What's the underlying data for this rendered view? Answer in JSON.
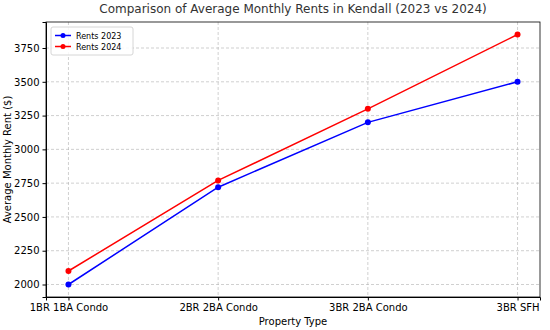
{
  "chart_data": {
    "type": "line",
    "title": "Comparison of Average Monthly Rents in Kendall (2023 vs 2024)",
    "x_label": "Property Type",
    "y_label": "Average Monthly Rent ($)",
    "categories": [
      "1BR 1BA Condo",
      "2BR 2BA Condo",
      "3BR 2BA Condo",
      "3BR SFH"
    ],
    "series": [
      {
        "name": "Rents 2023",
        "color": "#0000ff",
        "marker": "circle",
        "line_style": "solid",
        "values": [
          2000,
          2720,
          3200,
          3500
        ]
      },
      {
        "name": "Rents 2024",
        "color": "#ff0000",
        "marker": "circle",
        "line_style": "solid",
        "values": [
          2100,
          2770,
          3300,
          3850
        ]
      }
    ],
    "ylim": [
      1907.5,
      3942.5
    ],
    "yticks": [
      2000,
      2250,
      2500,
      2750,
      3000,
      3250,
      3500,
      3750
    ],
    "grid": true,
    "legend": "upper left"
  }
}
